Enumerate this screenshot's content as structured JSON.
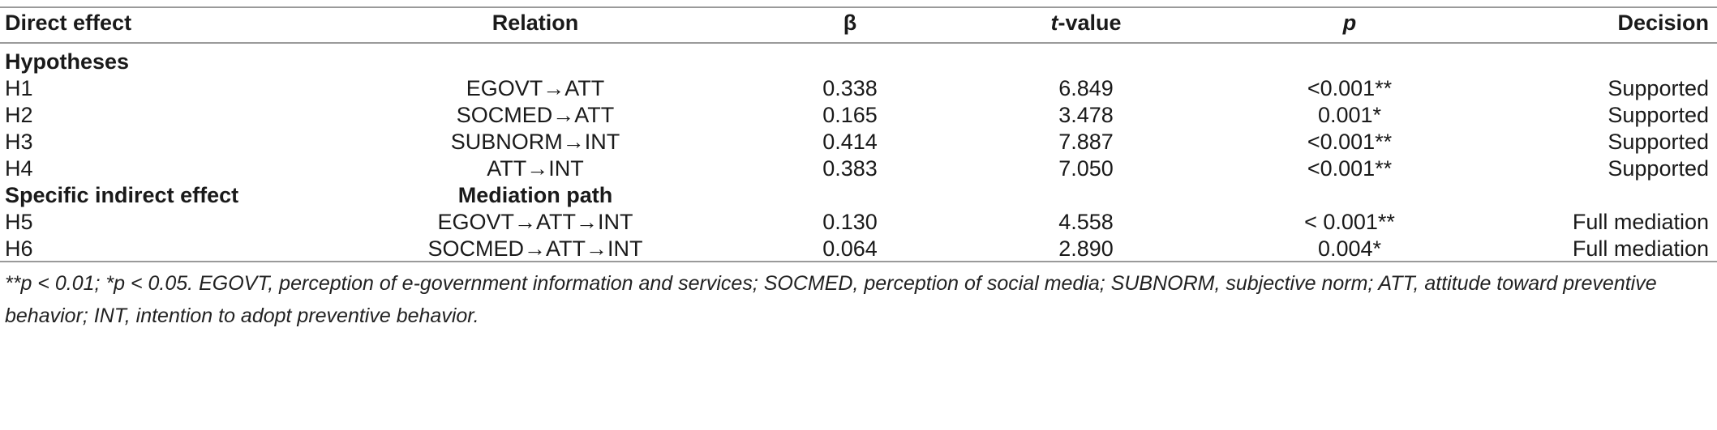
{
  "headers": {
    "col1": "Direct effect",
    "col2": "Relation",
    "col3": "β",
    "col4_italic": "t",
    "col4_rest": "-value",
    "col5": "p",
    "col6": "Decision"
  },
  "section1": "Hypotheses",
  "rows1": [
    {
      "h": "H1",
      "rel": "EGOVT→ATT",
      "beta": "0.338",
      "t": "6.849",
      "p": "<0.001**",
      "dec": "Supported"
    },
    {
      "h": "H2",
      "rel": "SOCMED→ATT",
      "beta": "0.165",
      "t": "3.478",
      "p": "0.001*",
      "dec": "Supported"
    },
    {
      "h": "H3",
      "rel": "SUBNORM→INT",
      "beta": "0.414",
      "t": "7.887",
      "p": "<0.001**",
      "dec": "Supported"
    },
    {
      "h": "H4",
      "rel": "ATT→INT",
      "beta": "0.383",
      "t": "7.050",
      "p": "<0.001**",
      "dec": "Supported"
    }
  ],
  "section2": {
    "label": "Specific indirect effect",
    "path": "Mediation path"
  },
  "rows2": [
    {
      "h": "H5",
      "rel": "EGOVT→ATT→INT",
      "beta": "0.130",
      "t": "4.558",
      "p": "< 0.001**",
      "dec": "Full mediation"
    },
    {
      "h": "H6",
      "rel": "SOCMED→ATT→INT",
      "beta": "0.064",
      "t": "2.890",
      "p": "0.004*",
      "dec": "Full mediation"
    }
  ],
  "footnote": "**p < 0.01; *p < 0.05. EGOVT, perception of e-government information and services; SOCMED, perception of social media; SUBNORM, subjective norm; ATT, attitude toward preventive behavior; INT, intention to adopt preventive behavior."
}
